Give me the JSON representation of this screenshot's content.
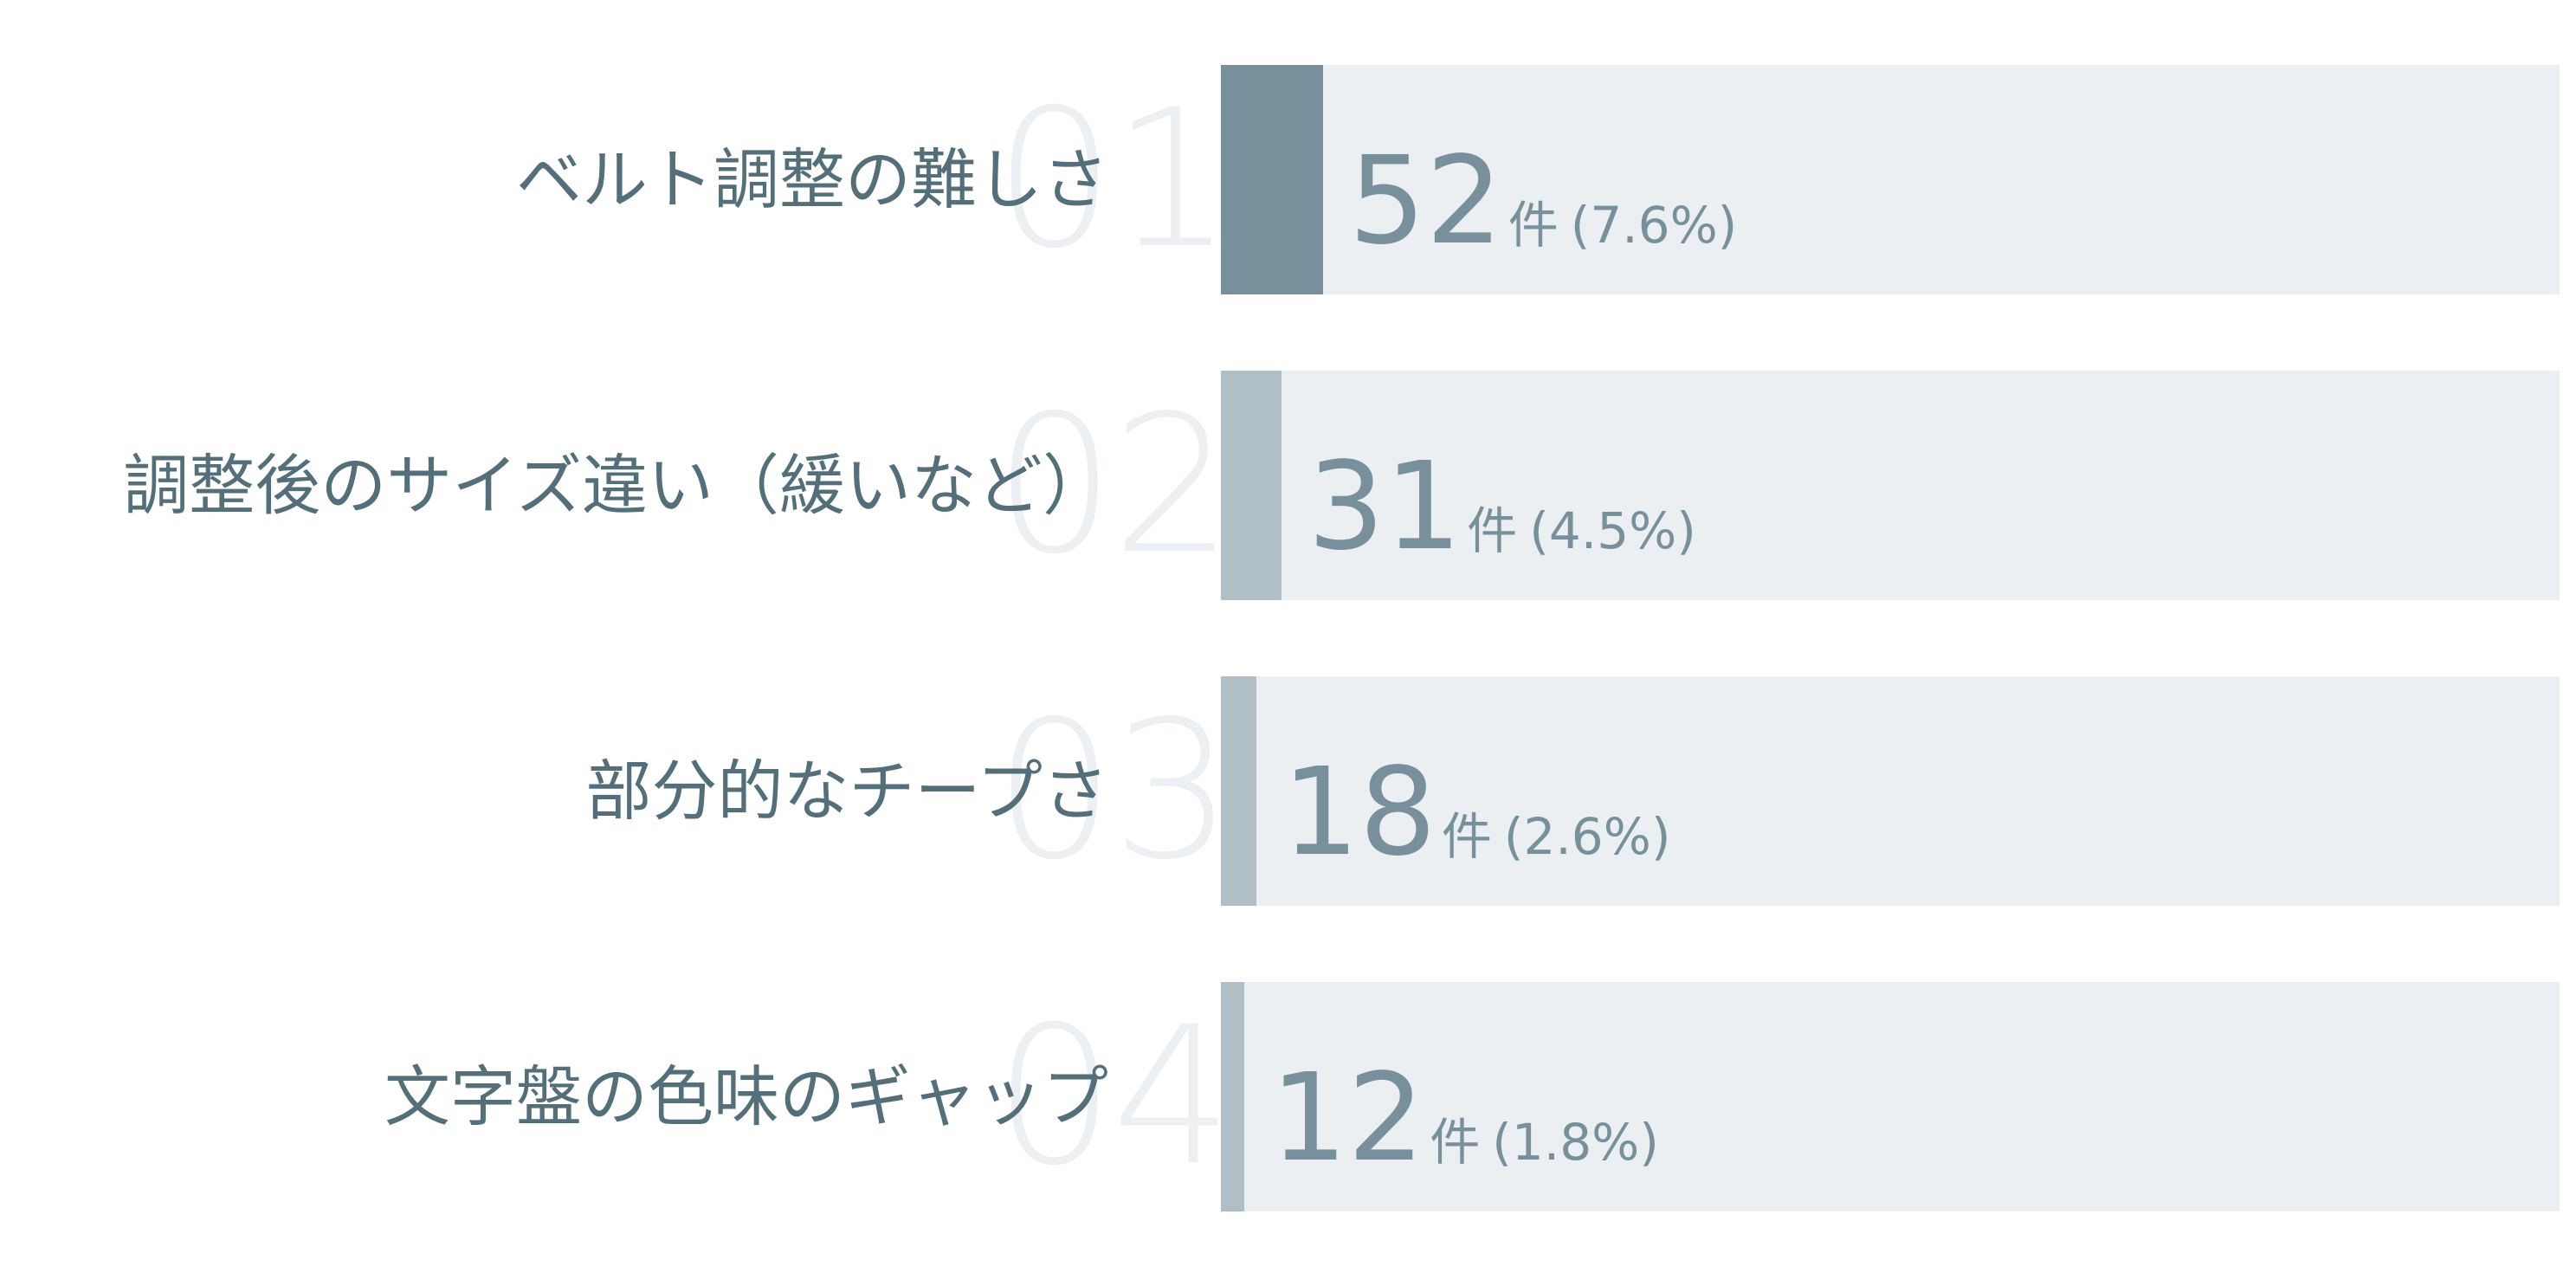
{
  "chart_data": {
    "type": "bar",
    "orientation": "horizontal",
    "categories": [
      "ベルト調整の難しさ",
      "調整後のサイズ違い（緩いなど）",
      "部分的なチープさ",
      "文字盤の色味のギャップ"
    ],
    "ranks": [
      "01",
      "02",
      "03",
      "04"
    ],
    "values": [
      52,
      31,
      18,
      12
    ],
    "percent_labels": [
      "(7.6%)",
      "(4.5%)",
      "(2.6%)",
      "(1.8%)"
    ],
    "unit": "件",
    "xlim": [
      0,
      684
    ],
    "grid": false,
    "legend": "none",
    "colors": {
      "top_bar": "#78909c",
      "other_bars": "#b0bec5",
      "track": "#eceff2",
      "label_text": "#546e7a",
      "value_text": "#78909c",
      "rank_text": "#edf0f3"
    }
  }
}
